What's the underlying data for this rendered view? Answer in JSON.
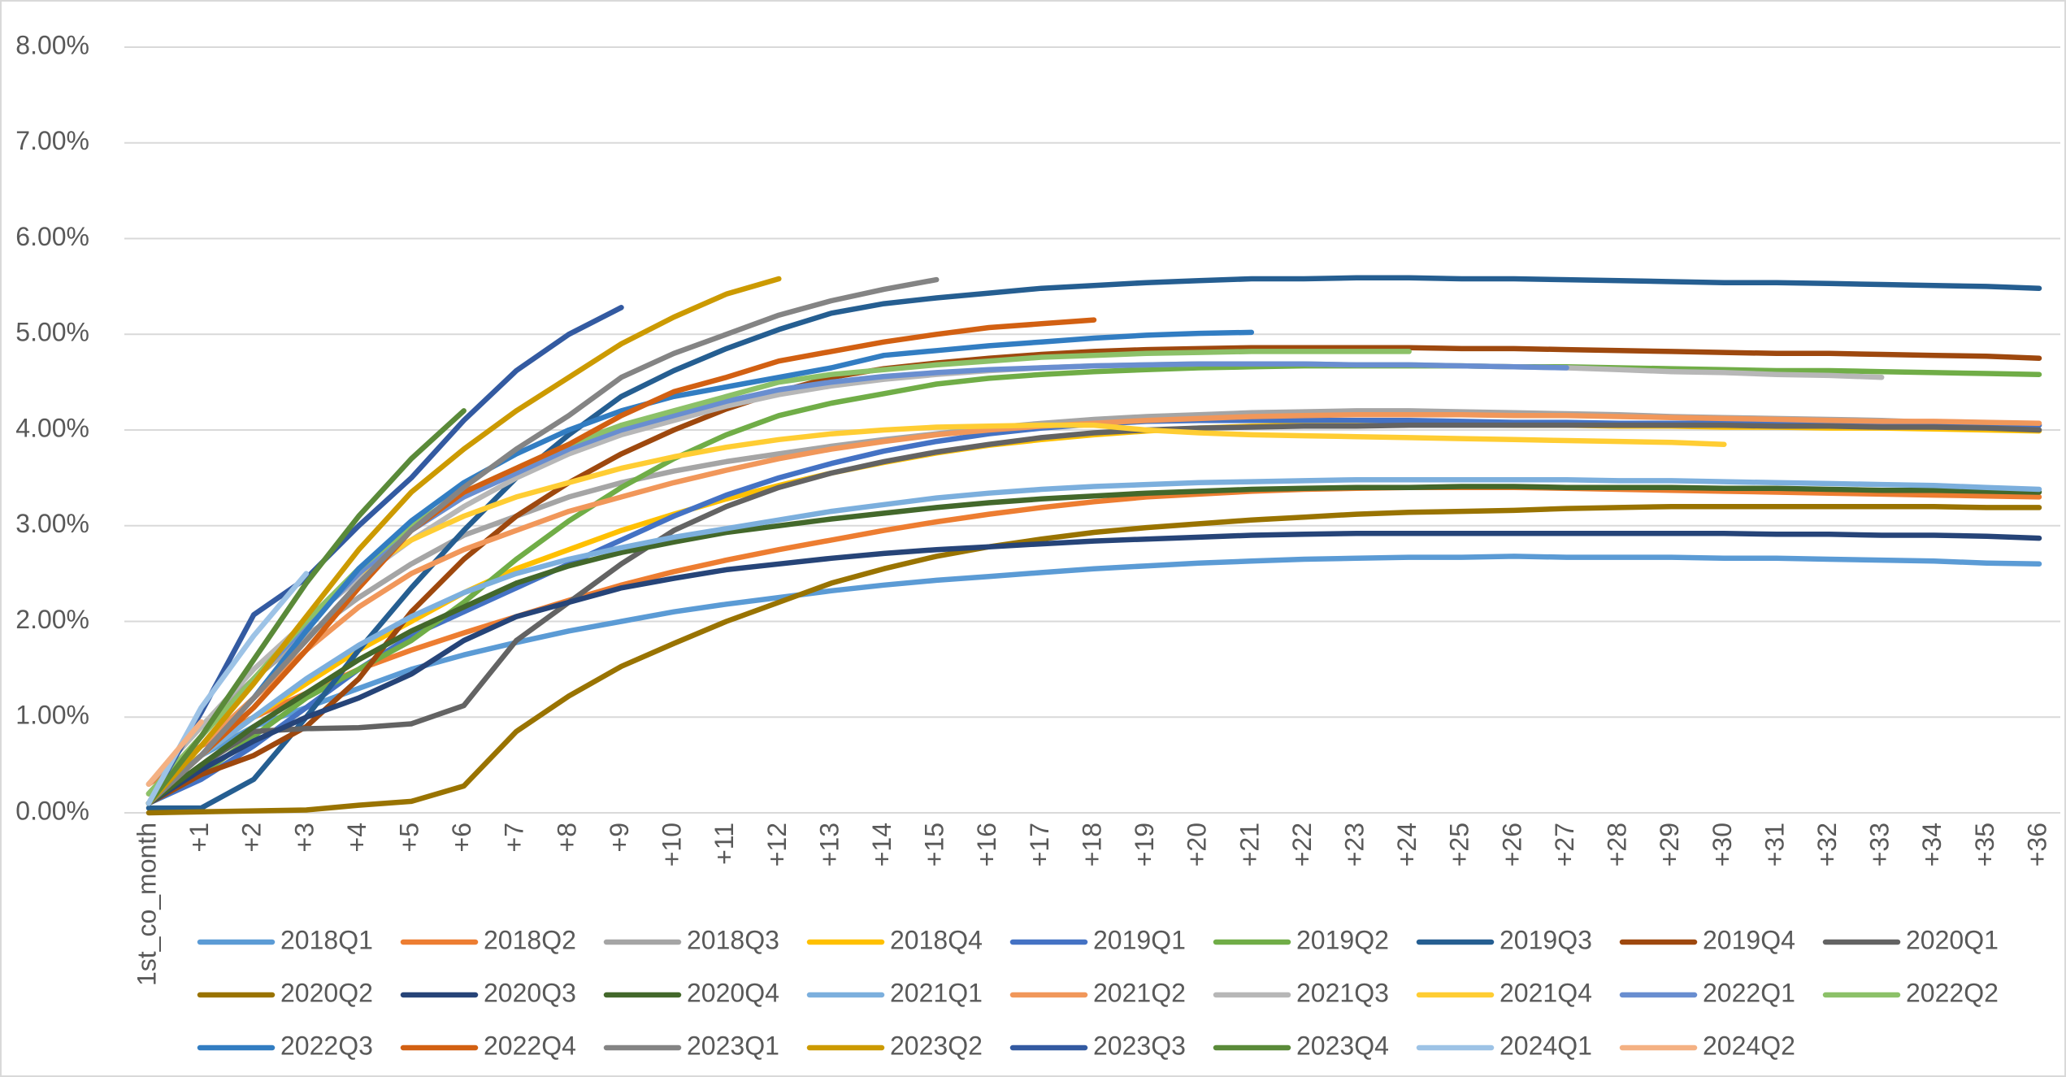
{
  "chart_data": {
    "type": "line",
    "categories": [
      "1st_co_month",
      "+1",
      "+2",
      "+3",
      "+4",
      "+5",
      "+6",
      "+7",
      "+8",
      "+9",
      "+10",
      "+11",
      "+12",
      "+13",
      "+14",
      "+15",
      "+16",
      "+17",
      "+18",
      "+19",
      "+20",
      "+21",
      "+22",
      "+23",
      "+24",
      "+25",
      "+26",
      "+27",
      "+28",
      "+29",
      "+30",
      "+31",
      "+32",
      "+33",
      "+34",
      "+35",
      "+36"
    ],
    "ylim": [
      0,
      8
    ],
    "yticks": [
      {
        "value": 0,
        "label": "0.00%"
      },
      {
        "value": 1,
        "label": "1.00%"
      },
      {
        "value": 2,
        "label": "2.00%"
      },
      {
        "value": 3,
        "label": "3.00%"
      },
      {
        "value": 4,
        "label": "4.00%"
      },
      {
        "value": 5,
        "label": "5.00%"
      },
      {
        "value": 6,
        "label": "6.00%"
      },
      {
        "value": 7,
        "label": "7.00%"
      },
      {
        "value": 8,
        "label": "8.00%"
      }
    ],
    "grid": true,
    "legend": "bottom",
    "series": [
      {
        "name": "2018Q1",
        "color": "#5B9BD5",
        "values": [
          0.1,
          0.6,
          0.9,
          1.1,
          1.3,
          1.5,
          1.65,
          1.78,
          1.9,
          2.0,
          2.1,
          2.18,
          2.25,
          2.32,
          2.38,
          2.43,
          2.47,
          2.51,
          2.55,
          2.58,
          2.61,
          2.63,
          2.65,
          2.66,
          2.67,
          2.67,
          2.68,
          2.67,
          2.67,
          2.67,
          2.66,
          2.66,
          2.65,
          2.64,
          2.63,
          2.61,
          2.6
        ]
      },
      {
        "name": "2018Q2",
        "color": "#ED7D31",
        "values": [
          0.3,
          0.7,
          1.0,
          1.25,
          1.5,
          1.7,
          1.88,
          2.05,
          2.22,
          2.38,
          2.52,
          2.64,
          2.75,
          2.85,
          2.95,
          3.04,
          3.12,
          3.19,
          3.25,
          3.3,
          3.33,
          3.36,
          3.38,
          3.39,
          3.4,
          3.4,
          3.4,
          3.39,
          3.38,
          3.37,
          3.36,
          3.35,
          3.34,
          3.33,
          3.32,
          3.31,
          3.3
        ]
      },
      {
        "name": "2018Q3",
        "color": "#A5A5A5",
        "values": [
          0.3,
          0.9,
          1.4,
          1.85,
          2.25,
          2.6,
          2.9,
          3.1,
          3.3,
          3.45,
          3.57,
          3.67,
          3.75,
          3.83,
          3.9,
          3.96,
          4.02,
          4.07,
          4.11,
          4.14,
          4.16,
          4.18,
          4.19,
          4.2,
          4.2,
          4.19,
          4.18,
          4.17,
          4.16,
          4.14,
          4.13,
          4.12,
          4.11,
          4.1,
          4.08,
          4.07,
          4.05
        ]
      },
      {
        "name": "2018Q4",
        "color": "#FFC000",
        "values": [
          0.2,
          0.6,
          1.0,
          1.35,
          1.7,
          2.0,
          2.3,
          2.55,
          2.75,
          2.95,
          3.12,
          3.28,
          3.42,
          3.55,
          3.66,
          3.76,
          3.84,
          3.9,
          3.95,
          3.99,
          4.02,
          4.04,
          4.05,
          4.06,
          4.06,
          4.06,
          4.05,
          4.05,
          4.04,
          4.04,
          4.03,
          4.03,
          4.02,
          4.02,
          4.01,
          4.0,
          3.99
        ]
      },
      {
        "name": "2019Q1",
        "color": "#4472C4",
        "values": [
          0.1,
          0.35,
          0.7,
          1.1,
          1.5,
          1.85,
          2.1,
          2.35,
          2.6,
          2.85,
          3.1,
          3.32,
          3.5,
          3.65,
          3.78,
          3.88,
          3.96,
          4.02,
          4.06,
          4.09,
          4.1,
          4.1,
          4.1,
          4.1,
          4.1,
          4.09,
          4.08,
          4.08,
          4.07,
          4.07,
          4.07,
          4.06,
          4.06,
          4.06,
          4.05,
          4.05,
          4.05
        ]
      },
      {
        "name": "2019Q2",
        "color": "#70AD47",
        "values": [
          0.1,
          0.4,
          0.8,
          1.2,
          1.5,
          1.8,
          2.2,
          2.65,
          3.05,
          3.4,
          3.7,
          3.95,
          4.15,
          4.28,
          4.38,
          4.48,
          4.54,
          4.58,
          4.61,
          4.63,
          4.65,
          4.66,
          4.67,
          4.67,
          4.67,
          4.67,
          4.66,
          4.66,
          4.65,
          4.64,
          4.63,
          4.62,
          4.62,
          4.61,
          4.6,
          4.59,
          4.58
        ]
      },
      {
        "name": "2019Q3",
        "color": "#255E91",
        "values": [
          0.05,
          0.05,
          0.35,
          1.0,
          1.7,
          2.35,
          2.95,
          3.5,
          3.95,
          4.35,
          4.62,
          4.85,
          5.05,
          5.22,
          5.32,
          5.38,
          5.43,
          5.48,
          5.51,
          5.54,
          5.56,
          5.58,
          5.58,
          5.59,
          5.59,
          5.58,
          5.58,
          5.57,
          5.56,
          5.55,
          5.54,
          5.54,
          5.53,
          5.52,
          5.51,
          5.5,
          5.48
        ]
      },
      {
        "name": "2019Q4",
        "color": "#9E480E",
        "values": [
          0.1,
          0.4,
          0.6,
          0.9,
          1.4,
          2.1,
          2.65,
          3.1,
          3.45,
          3.75,
          4.0,
          4.22,
          4.4,
          4.55,
          4.64,
          4.7,
          4.75,
          4.79,
          4.82,
          4.84,
          4.85,
          4.86,
          4.86,
          4.86,
          4.86,
          4.85,
          4.85,
          4.84,
          4.83,
          4.82,
          4.81,
          4.8,
          4.8,
          4.79,
          4.78,
          4.77,
          4.75
        ]
      },
      {
        "name": "2020Q1",
        "color": "#636363",
        "values": [
          0.1,
          0.5,
          0.85,
          0.88,
          0.89,
          0.93,
          1.12,
          1.8,
          2.2,
          2.6,
          2.95,
          3.2,
          3.4,
          3.55,
          3.67,
          3.77,
          3.85,
          3.92,
          3.97,
          4.0,
          4.02,
          4.03,
          4.04,
          4.04,
          4.05,
          4.05,
          4.05,
          4.05,
          4.05,
          4.05,
          4.05,
          4.04,
          4.04,
          4.03,
          4.03,
          4.02,
          4.0
        ]
      },
      {
        "name": "2020Q2",
        "color": "#997300",
        "values": [
          0.0,
          0.01,
          0.02,
          0.03,
          0.08,
          0.12,
          0.28,
          0.85,
          1.22,
          1.53,
          1.77,
          2.0,
          2.2,
          2.4,
          2.55,
          2.68,
          2.78,
          2.86,
          2.93,
          2.98,
          3.02,
          3.06,
          3.09,
          3.12,
          3.14,
          3.15,
          3.16,
          3.18,
          3.19,
          3.2,
          3.2,
          3.2,
          3.2,
          3.2,
          3.2,
          3.19,
          3.19
        ]
      },
      {
        "name": "2020Q3",
        "color": "#264478",
        "values": [
          0.1,
          0.45,
          0.75,
          1.0,
          1.2,
          1.45,
          1.8,
          2.05,
          2.2,
          2.35,
          2.45,
          2.54,
          2.6,
          2.66,
          2.71,
          2.75,
          2.78,
          2.81,
          2.84,
          2.86,
          2.88,
          2.9,
          2.91,
          2.92,
          2.92,
          2.92,
          2.92,
          2.92,
          2.92,
          2.92,
          2.92,
          2.91,
          2.91,
          2.9,
          2.9,
          2.89,
          2.87
        ]
      },
      {
        "name": "2020Q4",
        "color": "#43682B",
        "values": [
          0.1,
          0.5,
          0.9,
          1.25,
          1.6,
          1.9,
          2.15,
          2.4,
          2.58,
          2.72,
          2.83,
          2.93,
          3.0,
          3.07,
          3.13,
          3.19,
          3.24,
          3.28,
          3.31,
          3.34,
          3.36,
          3.38,
          3.39,
          3.4,
          3.4,
          3.41,
          3.41,
          3.4,
          3.4,
          3.4,
          3.39,
          3.39,
          3.38,
          3.37,
          3.37,
          3.36,
          3.35
        ]
      },
      {
        "name": "2021Q1",
        "color": "#7CAFDD",
        "values": [
          0.1,
          0.6,
          1.0,
          1.4,
          1.75,
          2.05,
          2.3,
          2.5,
          2.65,
          2.77,
          2.88,
          2.97,
          3.06,
          3.15,
          3.22,
          3.29,
          3.34,
          3.38,
          3.41,
          3.43,
          3.45,
          3.46,
          3.47,
          3.48,
          3.48,
          3.48,
          3.48,
          3.48,
          3.47,
          3.47,
          3.46,
          3.45,
          3.44,
          3.43,
          3.42,
          3.4,
          3.38
        ]
      },
      {
        "name": "2021Q2",
        "color": "#F1975A",
        "values": [
          0.2,
          0.7,
          1.2,
          1.7,
          2.15,
          2.5,
          2.75,
          2.95,
          3.15,
          3.3,
          3.45,
          3.58,
          3.7,
          3.8,
          3.88,
          3.95,
          4.0,
          4.04,
          4.07,
          4.1,
          4.12,
          4.14,
          4.15,
          4.16,
          4.16,
          4.16,
          4.15,
          4.15,
          4.14,
          4.13,
          4.12,
          4.11,
          4.1,
          4.09,
          4.09,
          4.08,
          4.07
        ]
      },
      {
        "name": "2021Q3",
        "color": "#B7B7B7",
        "values": [
          0.3,
          0.9,
          1.5,
          2.0,
          2.45,
          2.85,
          3.2,
          3.5,
          3.75,
          3.95,
          4.1,
          4.25,
          4.37,
          4.46,
          4.53,
          4.58,
          4.62,
          4.65,
          4.67,
          4.68,
          4.69,
          4.69,
          4.69,
          4.68,
          4.68,
          4.67,
          4.66,
          4.65,
          4.63,
          4.61,
          4.6,
          4.58,
          4.57,
          4.55,
          null,
          null,
          null
        ]
      },
      {
        "name": "2021Q4",
        "color": "#FFCD33",
        "values": [
          0.2,
          0.8,
          1.4,
          2.0,
          2.5,
          2.85,
          3.1,
          3.3,
          3.45,
          3.6,
          3.72,
          3.82,
          3.9,
          3.96,
          4.0,
          4.03,
          4.04,
          4.05,
          4.05,
          4.0,
          3.97,
          3.95,
          3.94,
          3.93,
          3.92,
          3.91,
          3.9,
          3.89,
          3.88,
          3.87,
          3.85,
          null,
          null,
          null,
          null,
          null,
          null
        ]
      },
      {
        "name": "2022Q1",
        "color": "#698ED0",
        "values": [
          0.2,
          0.8,
          1.4,
          1.95,
          2.5,
          2.95,
          3.3,
          3.55,
          3.8,
          4.0,
          4.15,
          4.3,
          4.42,
          4.5,
          4.56,
          4.6,
          4.63,
          4.65,
          4.67,
          4.68,
          4.69,
          4.69,
          4.69,
          4.68,
          4.68,
          4.67,
          4.66,
          4.65,
          null,
          null,
          null,
          null,
          null,
          null,
          null,
          null,
          null
        ]
      },
      {
        "name": "2022Q2",
        "color": "#8CC168",
        "values": [
          0.2,
          0.8,
          1.4,
          2.0,
          2.55,
          3.0,
          3.35,
          3.6,
          3.85,
          4.05,
          4.2,
          4.35,
          4.5,
          4.58,
          4.63,
          4.68,
          4.72,
          4.76,
          4.78,
          4.8,
          4.81,
          4.82,
          4.82,
          4.82,
          4.82,
          null,
          null,
          null,
          null,
          null,
          null,
          null,
          null,
          null,
          null,
          null,
          null
        ]
      },
      {
        "name": "2022Q3",
        "color": "#327DC2",
        "values": [
          0.1,
          0.6,
          1.2,
          1.9,
          2.55,
          3.05,
          3.45,
          3.75,
          4.0,
          4.2,
          4.35,
          4.45,
          4.55,
          4.65,
          4.78,
          4.83,
          4.88,
          4.92,
          4.96,
          4.99,
          5.01,
          5.02,
          null,
          null,
          null,
          null,
          null,
          null,
          null,
          null,
          null,
          null,
          null,
          null,
          null,
          null,
          null
        ]
      },
      {
        "name": "2022Q4",
        "color": "#D26012",
        "values": [
          0.1,
          0.6,
          1.1,
          1.7,
          2.35,
          2.95,
          3.35,
          3.6,
          3.85,
          4.15,
          4.4,
          4.55,
          4.72,
          4.82,
          4.92,
          5.0,
          5.07,
          5.11,
          5.15,
          null,
          null,
          null,
          null,
          null,
          null,
          null,
          null,
          null,
          null,
          null,
          null,
          null,
          null,
          null,
          null,
          null,
          null
        ]
      },
      {
        "name": "2023Q1",
        "color": "#848484",
        "values": [
          0.1,
          0.6,
          1.2,
          1.8,
          2.4,
          2.95,
          3.4,
          3.8,
          4.15,
          4.55,
          4.8,
          5.0,
          5.2,
          5.35,
          5.47,
          5.57,
          null,
          null,
          null,
          null,
          null,
          null,
          null,
          null,
          null,
          null,
          null,
          null,
          null,
          null,
          null,
          null,
          null,
          null,
          null,
          null,
          null
        ]
      },
      {
        "name": "2023Q2",
        "color": "#CC9A00",
        "values": [
          0.1,
          0.7,
          1.35,
          2.05,
          2.75,
          3.35,
          3.8,
          4.2,
          4.55,
          4.9,
          5.18,
          5.42,
          5.58,
          null,
          null,
          null,
          null,
          null,
          null,
          null,
          null,
          null,
          null,
          null,
          null,
          null,
          null,
          null,
          null,
          null,
          null,
          null,
          null,
          null,
          null,
          null,
          null
        ]
      },
      {
        "name": "2023Q3",
        "color": "#335AA1",
        "values": [
          0.1,
          1.05,
          2.07,
          2.45,
          3.0,
          3.5,
          4.1,
          4.62,
          5.0,
          5.28,
          null,
          null,
          null,
          null,
          null,
          null,
          null,
          null,
          null,
          null,
          null,
          null,
          null,
          null,
          null,
          null,
          null,
          null,
          null,
          null,
          null,
          null,
          null,
          null,
          null,
          null,
          null
        ]
      },
      {
        "name": "2023Q4",
        "color": "#5A8A39",
        "values": [
          0.1,
          0.8,
          1.6,
          2.4,
          3.1,
          3.7,
          4.2,
          null,
          null,
          null,
          null,
          null,
          null,
          null,
          null,
          null,
          null,
          null,
          null,
          null,
          null,
          null,
          null,
          null,
          null,
          null,
          null,
          null,
          null,
          null,
          null,
          null,
          null,
          null,
          null,
          null,
          null
        ]
      },
      {
        "name": "2024Q1",
        "color": "#9DC3E6",
        "values": [
          0.1,
          1.1,
          1.85,
          2.5,
          null,
          null,
          null,
          null,
          null,
          null,
          null,
          null,
          null,
          null,
          null,
          null,
          null,
          null,
          null,
          null,
          null,
          null,
          null,
          null,
          null,
          null,
          null,
          null,
          null,
          null,
          null,
          null,
          null,
          null,
          null,
          null,
          null
        ]
      },
      {
        "name": "2024Q2",
        "color": "#F4B183",
        "values": [
          0.3,
          0.95,
          null,
          null,
          null,
          null,
          null,
          null,
          null,
          null,
          null,
          null,
          null,
          null,
          null,
          null,
          null,
          null,
          null,
          null,
          null,
          null,
          null,
          null,
          null,
          null,
          null,
          null,
          null,
          null,
          null,
          null,
          null,
          null,
          null,
          null,
          null
        ]
      }
    ]
  }
}
